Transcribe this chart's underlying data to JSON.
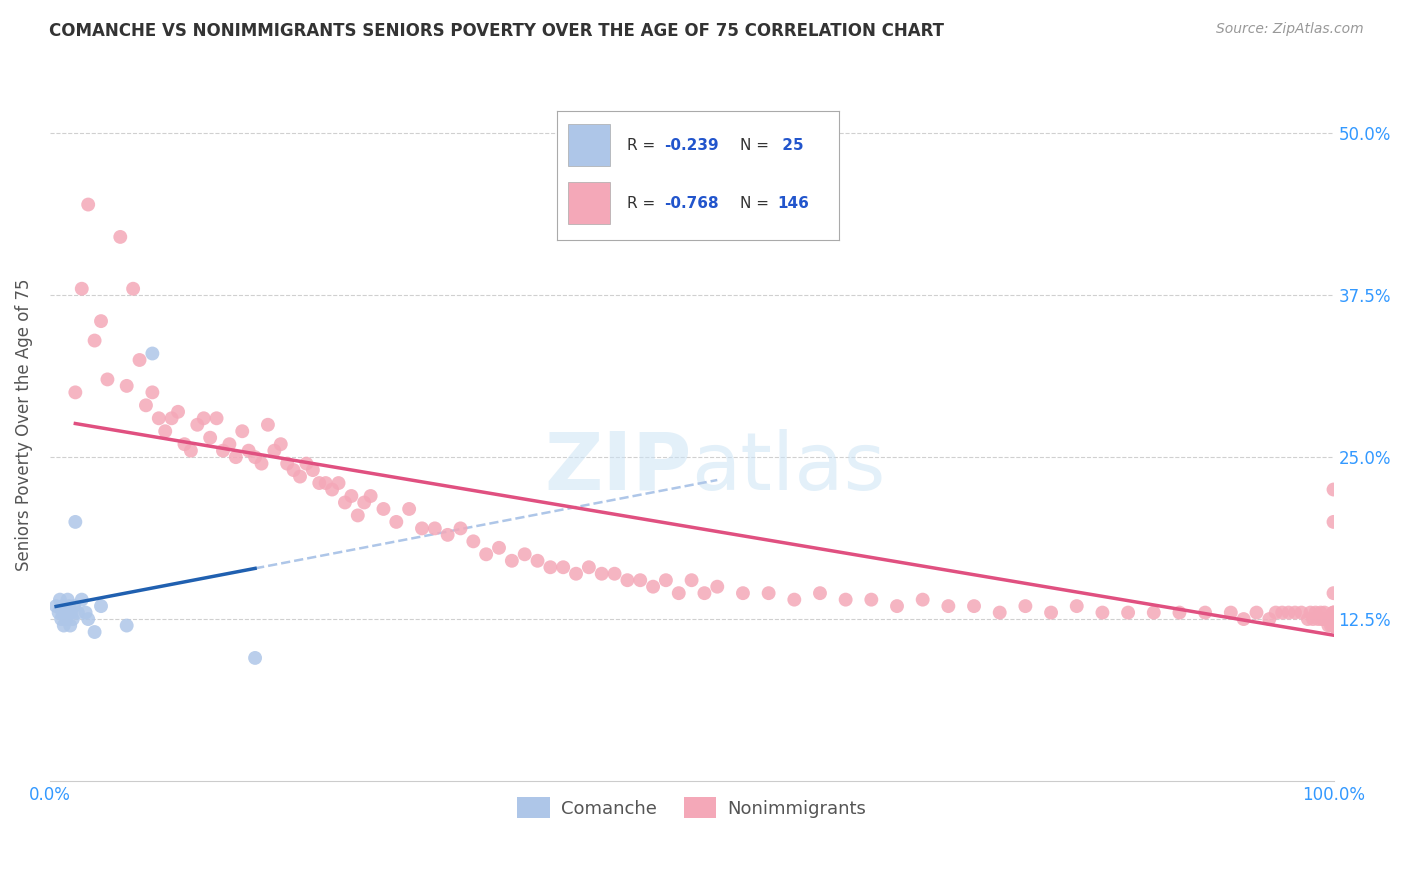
{
  "title": "COMANCHE VS NONIMMIGRANTS SENIORS POVERTY OVER THE AGE OF 75 CORRELATION CHART",
  "source": "Source: ZipAtlas.com",
  "ylabel": "Seniors Poverty Over the Age of 75",
  "xlim": [
    0,
    1.0
  ],
  "ylim": [
    0,
    0.55
  ],
  "ytick_positions": [
    0.125,
    0.25,
    0.375,
    0.5
  ],
  "ytick_labels": [
    "12.5%",
    "25.0%",
    "37.5%",
    "50.0%"
  ],
  "legend_R_comanche": "-0.239",
  "legend_N_comanche": "25",
  "legend_R_nonimm": "-0.768",
  "legend_N_nonimm": "146",
  "comanche_color": "#aec6e8",
  "nonimm_color": "#f4a8b8",
  "comanche_line_color": "#2060b0",
  "nonimm_line_color": "#e05080",
  "dashed_line_color": "#aec6e8",
  "background_color": "#ffffff",
  "grid_color": "#d0d0d0",
  "comanche_x": [
    0.005,
    0.007,
    0.008,
    0.009,
    0.01,
    0.01,
    0.011,
    0.012,
    0.013,
    0.014,
    0.015,
    0.016,
    0.017,
    0.018,
    0.019,
    0.02,
    0.022,
    0.025,
    0.028,
    0.03,
    0.035,
    0.04,
    0.06,
    0.08,
    0.16
  ],
  "comanche_y": [
    0.135,
    0.13,
    0.14,
    0.125,
    0.13,
    0.135,
    0.12,
    0.13,
    0.125,
    0.14,
    0.135,
    0.12,
    0.13,
    0.125,
    0.135,
    0.2,
    0.13,
    0.14,
    0.13,
    0.125,
    0.115,
    0.135,
    0.12,
    0.33,
    0.095
  ],
  "nonimm_x": [
    0.02,
    0.025,
    0.03,
    0.035,
    0.04,
    0.045,
    0.055,
    0.06,
    0.065,
    0.07,
    0.075,
    0.08,
    0.085,
    0.09,
    0.095,
    0.1,
    0.105,
    0.11,
    0.115,
    0.12,
    0.125,
    0.13,
    0.135,
    0.14,
    0.145,
    0.15,
    0.155,
    0.16,
    0.165,
    0.17,
    0.175,
    0.18,
    0.185,
    0.19,
    0.195,
    0.2,
    0.205,
    0.21,
    0.215,
    0.22,
    0.225,
    0.23,
    0.235,
    0.24,
    0.245,
    0.25,
    0.26,
    0.27,
    0.28,
    0.29,
    0.3,
    0.31,
    0.32,
    0.33,
    0.34,
    0.35,
    0.36,
    0.37,
    0.38,
    0.39,
    0.4,
    0.41,
    0.42,
    0.43,
    0.44,
    0.45,
    0.46,
    0.47,
    0.48,
    0.49,
    0.5,
    0.51,
    0.52,
    0.54,
    0.56,
    0.58,
    0.6,
    0.62,
    0.64,
    0.66,
    0.68,
    0.7,
    0.72,
    0.74,
    0.76,
    0.78,
    0.8,
    0.82,
    0.84,
    0.86,
    0.88,
    0.9,
    0.92,
    0.93,
    0.94,
    0.95,
    0.955,
    0.96,
    0.965,
    0.97,
    0.975,
    0.98,
    0.982,
    0.984,
    0.986,
    0.988,
    0.99,
    0.991,
    0.992,
    0.993,
    0.994,
    0.995,
    0.996,
    0.997,
    0.998,
    0.999,
    1.0,
    1.0,
    1.0,
    1.0,
    1.0,
    1.0,
    1.0,
    1.0,
    1.0,
    1.0,
    1.0,
    1.0,
    1.0,
    1.0,
    1.0,
    1.0,
    1.0,
    1.0,
    1.0,
    1.0,
    1.0,
    1.0,
    1.0,
    1.0,
    1.0,
    1.0,
    1.0,
    1.0,
    1.0,
    1.0
  ],
  "nonimm_y": [
    0.3,
    0.38,
    0.445,
    0.34,
    0.355,
    0.31,
    0.42,
    0.305,
    0.38,
    0.325,
    0.29,
    0.3,
    0.28,
    0.27,
    0.28,
    0.285,
    0.26,
    0.255,
    0.275,
    0.28,
    0.265,
    0.28,
    0.255,
    0.26,
    0.25,
    0.27,
    0.255,
    0.25,
    0.245,
    0.275,
    0.255,
    0.26,
    0.245,
    0.24,
    0.235,
    0.245,
    0.24,
    0.23,
    0.23,
    0.225,
    0.23,
    0.215,
    0.22,
    0.205,
    0.215,
    0.22,
    0.21,
    0.2,
    0.21,
    0.195,
    0.195,
    0.19,
    0.195,
    0.185,
    0.175,
    0.18,
    0.17,
    0.175,
    0.17,
    0.165,
    0.165,
    0.16,
    0.165,
    0.16,
    0.16,
    0.155,
    0.155,
    0.15,
    0.155,
    0.145,
    0.155,
    0.145,
    0.15,
    0.145,
    0.145,
    0.14,
    0.145,
    0.14,
    0.14,
    0.135,
    0.14,
    0.135,
    0.135,
    0.13,
    0.135,
    0.13,
    0.135,
    0.13,
    0.13,
    0.13,
    0.13,
    0.13,
    0.13,
    0.125,
    0.13,
    0.125,
    0.13,
    0.13,
    0.13,
    0.13,
    0.13,
    0.125,
    0.13,
    0.125,
    0.13,
    0.125,
    0.13,
    0.125,
    0.125,
    0.13,
    0.125,
    0.125,
    0.12,
    0.125,
    0.12,
    0.125,
    0.12,
    0.12,
    0.12,
    0.12,
    0.12,
    0.12,
    0.12,
    0.12,
    0.12,
    0.12,
    0.12,
    0.125,
    0.12,
    0.12,
    0.125,
    0.145,
    0.12,
    0.12,
    0.12,
    0.13,
    0.12,
    0.125,
    0.125,
    0.13,
    0.12,
    0.2,
    0.125,
    0.225,
    0.13,
    0.125
  ]
}
